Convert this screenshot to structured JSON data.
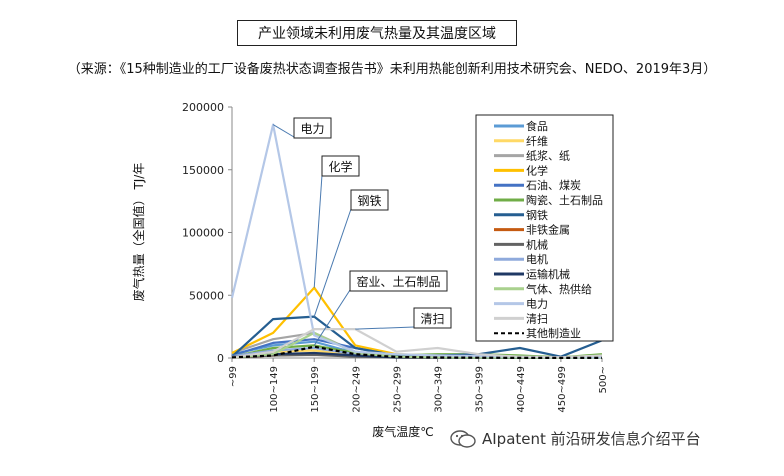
{
  "title": "产业领域未利用废气热量及其温度区域",
  "source": "（来源：《15种制造业的工厂设备废热状态调查报告书》未利用热能创新利用技术研究会、NEDO、2019年3月）",
  "watermark": "AIpatent 前沿研发信息介绍平台",
  "chart_data": {
    "type": "line",
    "xlabel": "废气温度℃",
    "ylabel": "废气热量（全国值） TJ/年",
    "categories": [
      "~99",
      "100~149",
      "150~199",
      "200~249",
      "250~299",
      "300~349",
      "350~399",
      "400~449",
      "450~499",
      "500~"
    ],
    "ylim": [
      0,
      200000
    ],
    "yticks": [
      0,
      50000,
      100000,
      150000,
      200000
    ],
    "legend_position": "right",
    "series": [
      {
        "name": "食品",
        "color": "#5b9bd5",
        "values": [
          3000,
          10000,
          13000,
          4000,
          1000,
          500,
          300,
          200,
          100,
          200
        ]
      },
      {
        "name": "纤维",
        "color": "#ffd966",
        "values": [
          2000,
          5000,
          6000,
          2000,
          500,
          300,
          200,
          100,
          100,
          100
        ]
      },
      {
        "name": "纸浆、纸",
        "color": "#a5a5a5",
        "values": [
          4000,
          15000,
          20000,
          5000,
          1500,
          800,
          500,
          300,
          200,
          300
        ]
      },
      {
        "name": "化学",
        "color": "#ffc000",
        "values": [
          4000,
          20000,
          56000,
          10000,
          3000,
          2000,
          1500,
          1000,
          800,
          1500
        ]
      },
      {
        "name": "石油、煤炭",
        "color": "#4472c4",
        "values": [
          2000,
          12000,
          15000,
          8000,
          2000,
          1000,
          800,
          600,
          400,
          800
        ]
      },
      {
        "name": "陶瓷、土石制品",
        "color": "#70ad47",
        "values": [
          1000,
          8000,
          10000,
          4000,
          2000,
          3000,
          3000,
          2000,
          500,
          3000
        ]
      },
      {
        "name": "钢铁",
        "color": "#255e91",
        "values": [
          1000,
          31000,
          33000,
          8000,
          2000,
          2000,
          3000,
          8000,
          1000,
          14000
        ]
      },
      {
        "name": "非铁金属",
        "color": "#c55a11",
        "values": [
          500,
          2000,
          3000,
          1500,
          500,
          300,
          200,
          200,
          100,
          300
        ]
      },
      {
        "name": "机械",
        "color": "#636363",
        "values": [
          500,
          2000,
          2500,
          1000,
          300,
          200,
          100,
          100,
          100,
          100
        ]
      },
      {
        "name": "电机",
        "color": "#8faadc",
        "values": [
          1500,
          6000,
          8000,
          3000,
          800,
          300,
          200,
          100,
          100,
          100
        ]
      },
      {
        "name": "运输机械",
        "color": "#1f3864",
        "values": [
          1000,
          3000,
          4000,
          2000,
          500,
          300,
          200,
          100,
          100,
          100
        ]
      },
      {
        "name": "气体、热供给",
        "color": "#a9d18e",
        "values": [
          500,
          3000,
          20000,
          4000,
          1000,
          500,
          300,
          200,
          100,
          100
        ]
      },
      {
        "name": "电力",
        "color": "#b4c7e7",
        "values": [
          48000,
          186000,
          18000,
          5000,
          3000,
          2000,
          1500,
          1000,
          500,
          500
        ]
      },
      {
        "name": "清扫",
        "color": "#d0d0d0",
        "values": [
          500,
          5000,
          23000,
          23000,
          5000,
          8000,
          3000,
          1000,
          500,
          2000
        ]
      },
      {
        "name": "其他制造业",
        "color": "#000000",
        "dashed": true,
        "values": [
          500,
          2000,
          9000,
          3000,
          800,
          400,
          200,
          100,
          100,
          100
        ]
      }
    ],
    "annotations": [
      {
        "text": "电力",
        "series": "电力",
        "category": "100~149"
      },
      {
        "text": "化学",
        "series": "化学",
        "category": "150~199"
      },
      {
        "text": "钢铁",
        "series": "钢铁",
        "category": "150~199"
      },
      {
        "text": "窑业、土石制品",
        "series": "陶瓷、土石制品",
        "category": "150~199"
      },
      {
        "text": "清扫",
        "series": "清扫",
        "category": "200~249"
      }
    ]
  }
}
